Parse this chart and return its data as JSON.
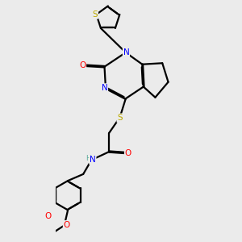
{
  "bg_color": "#ebebeb",
  "atom_colors": {
    "C": "#000000",
    "N": "#0000ff",
    "O": "#ff0000",
    "S": "#bbaa00",
    "H": "#5aaa9a"
  },
  "bond_color": "#000000",
  "bond_width": 1.6,
  "figsize": [
    3.0,
    3.0
  ],
  "dpi": 100
}
